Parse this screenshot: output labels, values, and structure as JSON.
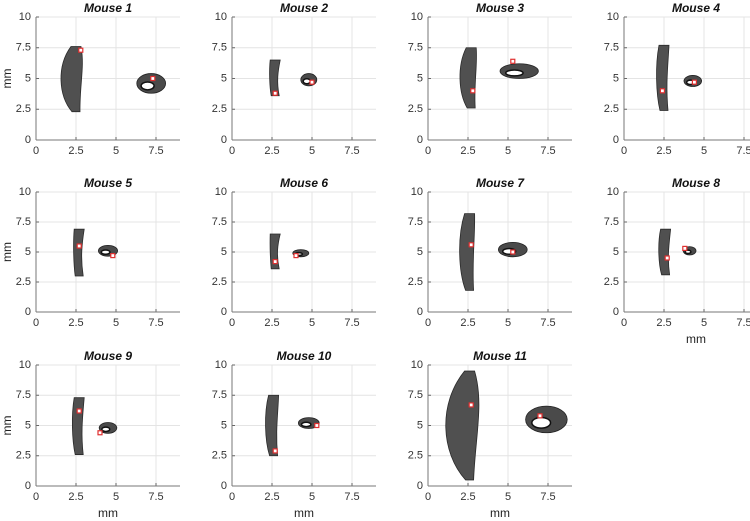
{
  "chart_data": [
    {
      "type": "scatter",
      "title": "Mouse 1",
      "ylabel": "mm",
      "x": [
        2.8,
        7.3
      ],
      "y": [
        7.3,
        5.0
      ],
      "color": "#e03030",
      "xlim": [
        0,
        9
      ],
      "ylim": [
        0,
        10
      ],
      "xticks": [
        0,
        2.5,
        5,
        7.5
      ],
      "yticks": [
        0,
        2.5,
        5,
        7.5,
        10
      ],
      "grid": true
    },
    {
      "type": "scatter",
      "title": "Mouse 2",
      "x": [
        2.7,
        5.0
      ],
      "y": [
        3.8,
        4.7
      ],
      "color": "#e03030",
      "xlim": [
        0,
        9
      ],
      "ylim": [
        0,
        10
      ],
      "xticks": [
        0,
        2.5,
        5,
        7.5
      ],
      "yticks": [
        0,
        2.5,
        5,
        7.5,
        10
      ],
      "grid": true
    },
    {
      "type": "scatter",
      "title": "Mouse 3",
      "x": [
        2.8,
        5.3
      ],
      "y": [
        4.0,
        6.4
      ],
      "color": "#e03030",
      "xlim": [
        0,
        9
      ],
      "ylim": [
        0,
        10
      ],
      "xticks": [
        0,
        2.5,
        5,
        7.5
      ],
      "yticks": [
        0,
        2.5,
        5,
        7.5,
        10
      ],
      "grid": true
    },
    {
      "type": "scatter",
      "title": "Mouse 4",
      "x": [
        2.4,
        4.4
      ],
      "y": [
        4.0,
        4.7
      ],
      "color": "#e03030",
      "xlim": [
        0,
        9
      ],
      "ylim": [
        0,
        10
      ],
      "xticks": [
        0,
        2.5,
        5,
        7.5
      ],
      "yticks": [
        0,
        2.5,
        5,
        7.5,
        10
      ],
      "grid": true
    },
    {
      "type": "scatter",
      "title": "Mouse 5",
      "ylabel": "mm",
      "x": [
        2.7,
        4.8
      ],
      "y": [
        5.5,
        4.7
      ],
      "color": "#e03030",
      "xlim": [
        0,
        9
      ],
      "ylim": [
        0,
        10
      ],
      "xticks": [
        0,
        2.5,
        5,
        7.5
      ],
      "yticks": [
        0,
        2.5,
        5,
        7.5,
        10
      ],
      "grid": true
    },
    {
      "type": "scatter",
      "title": "Mouse 6",
      "x": [
        2.7,
        4.0
      ],
      "y": [
        4.2,
        4.7
      ],
      "color": "#e03030",
      "xlim": [
        0,
        9
      ],
      "ylim": [
        0,
        10
      ],
      "xticks": [
        0,
        2.5,
        5,
        7.5
      ],
      "yticks": [
        0,
        2.5,
        5,
        7.5,
        10
      ],
      "grid": true
    },
    {
      "type": "scatter",
      "title": "Mouse 7",
      "x": [
        2.7,
        5.3
      ],
      "y": [
        5.6,
        5.0
      ],
      "color": "#e03030",
      "xlim": [
        0,
        9
      ],
      "ylim": [
        0,
        10
      ],
      "xticks": [
        0,
        2.5,
        5,
        7.5
      ],
      "yticks": [
        0,
        2.5,
        5,
        7.5,
        10
      ],
      "grid": true
    },
    {
      "type": "scatter",
      "title": "Mouse 8",
      "xlabel": "mm",
      "x": [
        2.7,
        3.8
      ],
      "y": [
        4.5,
        5.3
      ],
      "color": "#e03030",
      "xlim": [
        0,
        9
      ],
      "ylim": [
        0,
        10
      ],
      "xticks": [
        0,
        2.5,
        5,
        7.5
      ],
      "yticks": [
        0,
        2.5,
        5,
        7.5,
        10
      ],
      "grid": true
    },
    {
      "type": "scatter",
      "title": "Mouse 9",
      "xlabel": "mm",
      "ylabel": "mm",
      "x": [
        2.7,
        4.0
      ],
      "y": [
        6.2,
        4.4
      ],
      "color": "#e03030",
      "xlim": [
        0,
        9
      ],
      "ylim": [
        0,
        10
      ],
      "xticks": [
        0,
        2.5,
        5,
        7.5
      ],
      "yticks": [
        0,
        2.5,
        5,
        7.5,
        10
      ],
      "grid": true
    },
    {
      "type": "scatter",
      "title": "Mouse 10",
      "xlabel": "mm",
      "x": [
        2.7,
        5.3
      ],
      "y": [
        2.9,
        5.0
      ],
      "color": "#e03030",
      "xlim": [
        0,
        9
      ],
      "ylim": [
        0,
        10
      ],
      "xticks": [
        0,
        2.5,
        5,
        7.5
      ],
      "yticks": [
        0,
        2.5,
        5,
        7.5,
        10
      ],
      "grid": true
    },
    {
      "type": "scatter",
      "title": "Mouse 11",
      "xlabel": "mm",
      "x": [
        2.7,
        7.0
      ],
      "y": [
        6.7,
        5.8
      ],
      "color": "#e03030",
      "xlim": [
        0,
        9
      ],
      "ylim": [
        0,
        10
      ],
      "xticks": [
        0,
        2.5,
        5,
        7.5
      ],
      "yticks": [
        0,
        2.5,
        5,
        7.5,
        10
      ],
      "grid": true
    }
  ]
}
